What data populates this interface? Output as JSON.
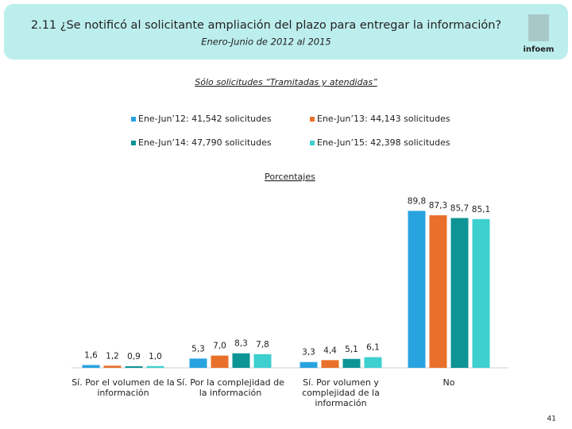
{
  "chart_data": {
    "type": "bar",
    "title": "2.11 ¿Se notificó al solicitante ampliación del plazo para entregar la información?",
    "subtitle": "Enero-Junio de 2012 al 2015",
    "note": "Sólo solicitudes “Tramitadas y atendidas”",
    "axis_label": "Porcentajes",
    "logo_text": "infoem",
    "page_number": "41",
    "categories": [
      [
        "Sí. Por el volumen de la",
        "información"
      ],
      [
        "Sí. Por la complejidad de",
        "la información"
      ],
      [
        "Sí. Por volumen y",
        "complejidad de la",
        "información"
      ],
      [
        "No"
      ]
    ],
    "series": [
      {
        "name": "Ene-Jun’12: 41,542 solicitudes",
        "color": "#29a3e0",
        "values": [
          1.6,
          5.3,
          3.3,
          89.8
        ],
        "value_labels": [
          "1,6",
          "5,3",
          "3,3",
          "89,8"
        ]
      },
      {
        "name": "Ene-Jun’13: 44,143 solicitudes",
        "color": "#e8702a",
        "values": [
          1.2,
          7.0,
          4.4,
          87.3
        ],
        "value_labels": [
          "1,2",
          "7,0",
          "4,4",
          "87,3"
        ]
      },
      {
        "name": "Ene-Jun’14: 47,790 solicitudes",
        "color": "#0e9494",
        "values": [
          0.9,
          8.3,
          5.1,
          85.7
        ],
        "value_labels": [
          "0,9",
          "8,3",
          "5,1",
          "85,7"
        ]
      },
      {
        "name": "Ene-Jun’15: 42,398 solicitudes",
        "color": "#3ecfcf",
        "values": [
          1.0,
          7.8,
          6.1,
          85.1
        ],
        "value_labels": [
          "1,0",
          "7,8",
          "6,1",
          "85,1"
        ]
      }
    ]
  }
}
